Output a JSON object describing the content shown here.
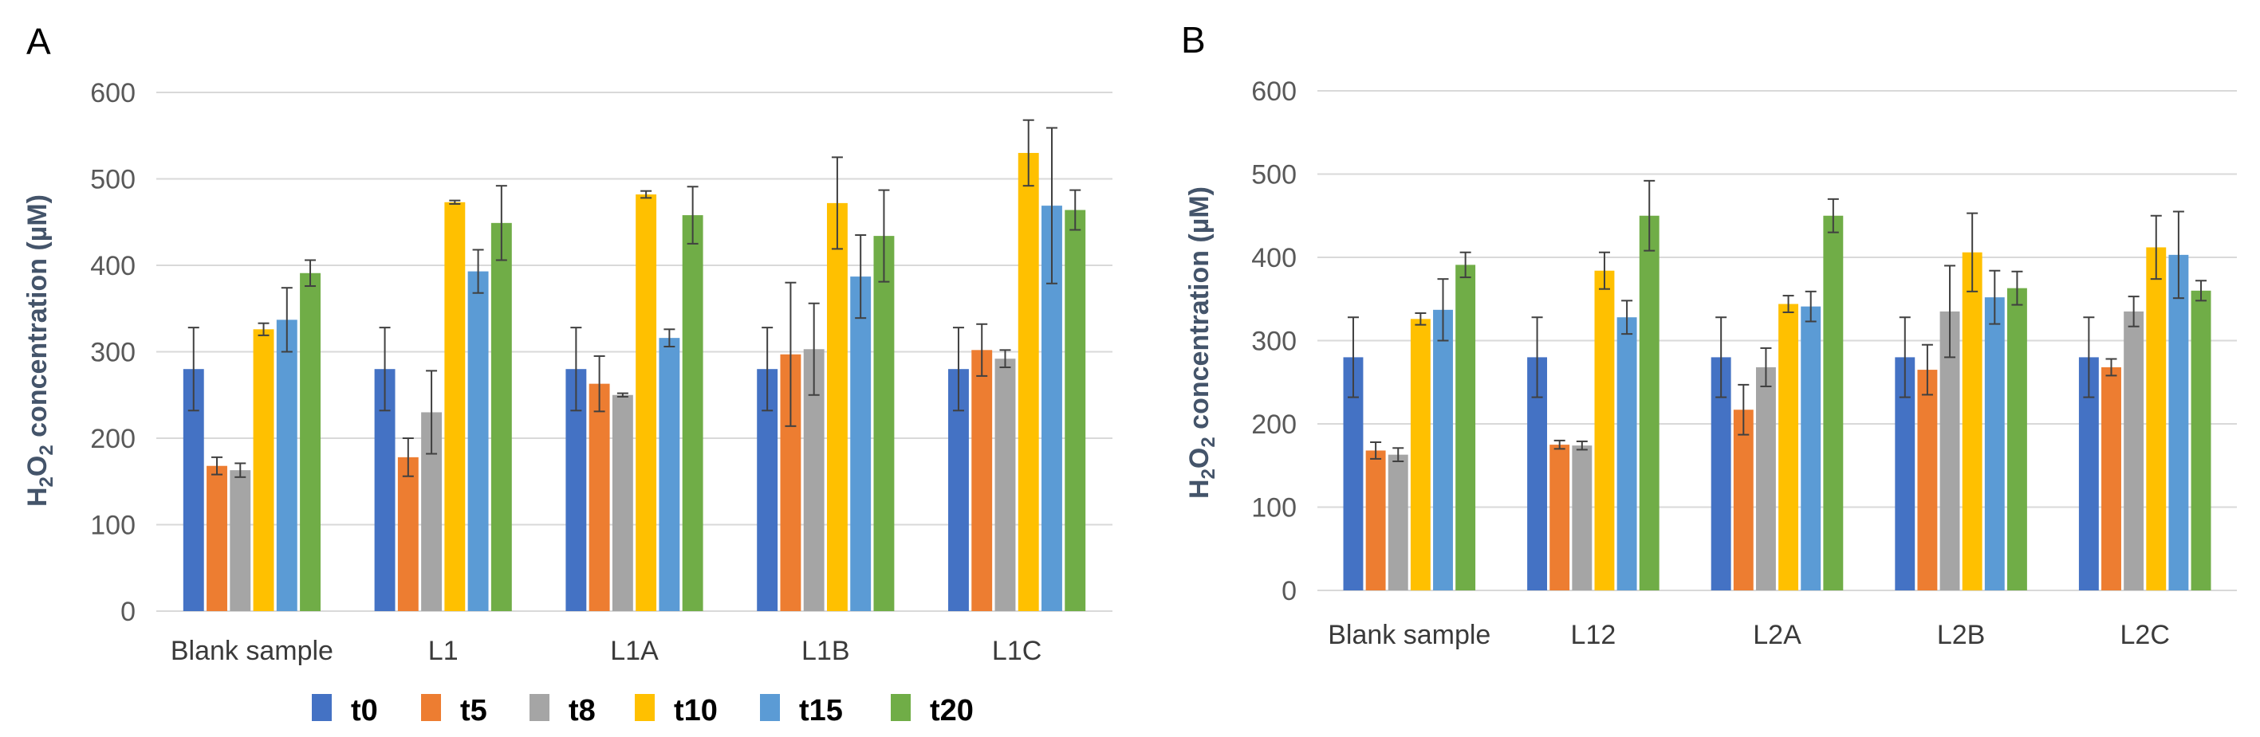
{
  "colors": {
    "t0": "#4472C4",
    "t5": "#ED7D31",
    "t8": "#A5A5A5",
    "t10": "#FFC000",
    "t15": "#5B9BD5",
    "t20": "#70AD47",
    "grid": "#D9D9D9",
    "axis_label": "#44546A"
  },
  "legend": {
    "items": [
      "t0",
      "t5",
      "t8",
      "t10",
      "t15",
      "t20"
    ]
  },
  "chart_data": [
    {
      "panel": "A",
      "type": "bar",
      "title": "",
      "xlabel": "",
      "ylabel": {
        "main": "H",
        "sub1": "2",
        "mid": "O",
        "sub2": "2",
        "rest": " concentration (µM)"
      },
      "ylim": [
        0,
        600
      ],
      "yticks": [
        "0",
        "100",
        "200",
        "300",
        "400",
        "500",
        "600"
      ],
      "grid": true,
      "categories": [
        "Blank sample",
        "L1",
        "L1A",
        "L1B",
        "L1C"
      ],
      "series": [
        {
          "name": "t0",
          "values": [
            280,
            280,
            280,
            280,
            280
          ],
          "errors": [
            48,
            48,
            48,
            48,
            48
          ]
        },
        {
          "name": "t5",
          "values": [
            168,
            178,
            263,
            297,
            302
          ],
          "errors": [
            10,
            22,
            32,
            83,
            30
          ]
        },
        {
          "name": "t8",
          "values": [
            163,
            230,
            250,
            303,
            292
          ],
          "errors": [
            8,
            48,
            2,
            53,
            10
          ]
        },
        {
          "name": "t10",
          "values": [
            326,
            473,
            482,
            472,
            530
          ],
          "errors": [
            7,
            2,
            4,
            53,
            38
          ]
        },
        {
          "name": "t15",
          "values": [
            337,
            393,
            316,
            387,
            469
          ],
          "errors": [
            37,
            25,
            10,
            48,
            90
          ]
        },
        {
          "name": "t20",
          "values": [
            391,
            449,
            458,
            434,
            464
          ],
          "errors": [
            15,
            43,
            33,
            53,
            23
          ]
        }
      ]
    },
    {
      "panel": "B",
      "type": "bar",
      "title": "",
      "xlabel": "",
      "ylabel": {
        "main": "H",
        "sub1": "2",
        "mid": "O",
        "sub2": "2",
        "rest": " concentration (µM)"
      },
      "ylim": [
        0,
        600
      ],
      "yticks": [
        "0",
        "100",
        "200",
        "300",
        "400",
        "500",
        "600"
      ],
      "grid": true,
      "categories": [
        "Blank sample",
        "L12",
        "L2A",
        "L2B",
        "L2C"
      ],
      "series": [
        {
          "name": "t0",
          "values": [
            280,
            280,
            280,
            280,
            280
          ],
          "errors": [
            48,
            48,
            48,
            48,
            48
          ]
        },
        {
          "name": "t5",
          "values": [
            168,
            175,
            217,
            265,
            268
          ],
          "errors": [
            10,
            5,
            30,
            30,
            10
          ]
        },
        {
          "name": "t8",
          "values": [
            163,
            174,
            268,
            335,
            335
          ],
          "errors": [
            8,
            5,
            23,
            55,
            18
          ]
        },
        {
          "name": "t10",
          "values": [
            326,
            384,
            344,
            406,
            412
          ],
          "errors": [
            7,
            22,
            10,
            47,
            38
          ]
        },
        {
          "name": "t15",
          "values": [
            337,
            328,
            341,
            352,
            403
          ],
          "errors": [
            37,
            20,
            18,
            32,
            52
          ]
        },
        {
          "name": "t20",
          "values": [
            391,
            450,
            450,
            363,
            360
          ],
          "errors": [
            15,
            42,
            20,
            20,
            12
          ]
        }
      ]
    }
  ]
}
